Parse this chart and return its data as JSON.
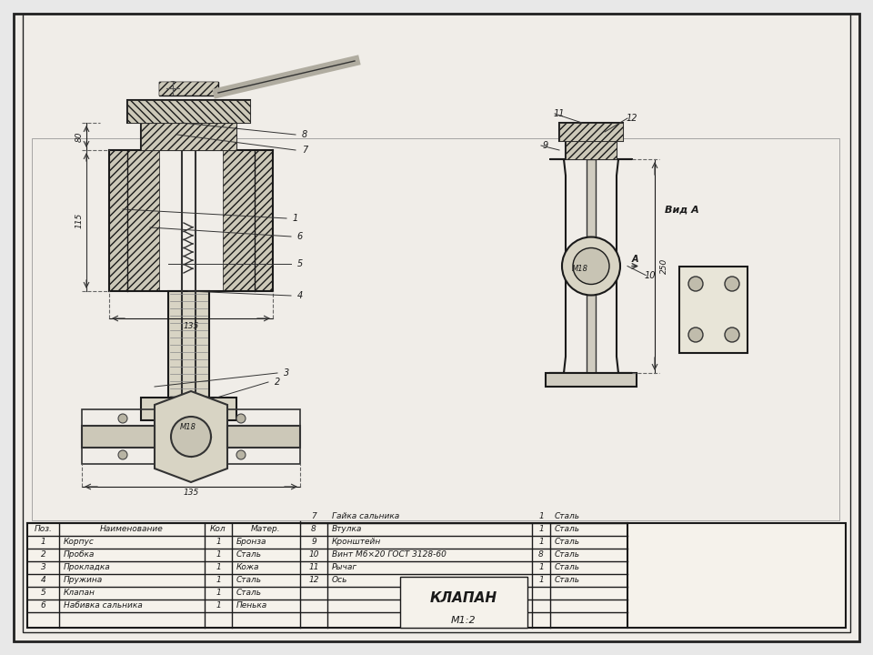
{
  "title": "КЛАПАН",
  "scale": "М1:2",
  "background_color": "#e8e8e8",
  "border_color": "#222222",
  "paper_color": "#f0ede8",
  "table": {
    "headers": [
      "Поз.",
      "Наименование",
      "Кол",
      "Матер."
    ],
    "rows_left": [
      [
        "1",
        "Корпус",
        "1",
        "Бронза"
      ],
      [
        "2",
        "Пробка",
        "1",
        "Сталь"
      ],
      [
        "3",
        "Прокладка",
        "1",
        "Кожа"
      ],
      [
        "4",
        "Пружина",
        "1",
        "Сталь"
      ],
      [
        "5",
        "Клапан",
        "1",
        "Сталь"
      ],
      [
        "6",
        "Набивка сальника",
        "1",
        "Пенька"
      ]
    ],
    "rows_right_top": [
      "7",
      "Гайка сальника",
      "1",
      "Сталь"
    ],
    "rows_right": [
      [
        "8",
        "Втулка",
        "1",
        "Сталь"
      ],
      [
        "9",
        "Кронштейн",
        "1",
        "Сталь"
      ],
      [
        "10",
        "Винт М6×20 ГОСТ 3128-60",
        "8",
        "Сталь"
      ],
      [
        "11",
        "Рычаг",
        "1",
        "Сталь"
      ],
      [
        "12",
        "Ось",
        "1",
        "Сталь"
      ]
    ]
  },
  "dimension_80": "80",
  "dimension_115": "115",
  "dimension_135": "135",
  "dimension_250": "250",
  "dim_M18": "М18",
  "vid_A": "Вид А"
}
